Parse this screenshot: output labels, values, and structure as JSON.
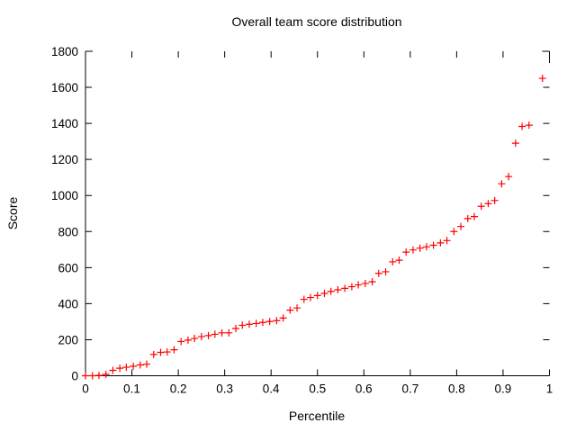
{
  "title": "Overall team score distribution",
  "chart_data": {
    "type": "scatter",
    "title": "Overall team score distribution",
    "xlabel": "Percentile",
    "ylabel": "Score",
    "xlim": [
      0,
      1
    ],
    "ylim": [
      0,
      1800
    ],
    "x_tick_step": 0.1,
    "y_tick_step": 200,
    "grid": false,
    "legend_position": "none",
    "marker": {
      "shape": "plus",
      "color": "#ff0000",
      "size": 8
    },
    "axis_color": "#000000",
    "background_color": "#ffffff",
    "points": [
      [
        0.0,
        0
      ],
      [
        0.015,
        0
      ],
      [
        0.029,
        2
      ],
      [
        0.044,
        8
      ],
      [
        0.059,
        30
      ],
      [
        0.074,
        42
      ],
      [
        0.088,
        47
      ],
      [
        0.103,
        53
      ],
      [
        0.118,
        60
      ],
      [
        0.132,
        64
      ],
      [
        0.147,
        118
      ],
      [
        0.162,
        130
      ],
      [
        0.176,
        132
      ],
      [
        0.191,
        144
      ],
      [
        0.206,
        190
      ],
      [
        0.221,
        198
      ],
      [
        0.235,
        207
      ],
      [
        0.25,
        217
      ],
      [
        0.265,
        223
      ],
      [
        0.279,
        230
      ],
      [
        0.294,
        238
      ],
      [
        0.309,
        238
      ],
      [
        0.324,
        262
      ],
      [
        0.338,
        280
      ],
      [
        0.353,
        286
      ],
      [
        0.368,
        290
      ],
      [
        0.382,
        296
      ],
      [
        0.397,
        301
      ],
      [
        0.412,
        306
      ],
      [
        0.426,
        320
      ],
      [
        0.441,
        364
      ],
      [
        0.456,
        376
      ],
      [
        0.471,
        424
      ],
      [
        0.485,
        434
      ],
      [
        0.5,
        445
      ],
      [
        0.515,
        457
      ],
      [
        0.529,
        468
      ],
      [
        0.544,
        477
      ],
      [
        0.559,
        485
      ],
      [
        0.574,
        494
      ],
      [
        0.588,
        504
      ],
      [
        0.603,
        512
      ],
      [
        0.618,
        521
      ],
      [
        0.632,
        568
      ],
      [
        0.647,
        577
      ],
      [
        0.662,
        632
      ],
      [
        0.676,
        641
      ],
      [
        0.691,
        686
      ],
      [
        0.706,
        698
      ],
      [
        0.721,
        708
      ],
      [
        0.735,
        715
      ],
      [
        0.75,
        724
      ],
      [
        0.765,
        737
      ],
      [
        0.779,
        750
      ],
      [
        0.794,
        800
      ],
      [
        0.809,
        828
      ],
      [
        0.824,
        872
      ],
      [
        0.838,
        883
      ],
      [
        0.853,
        940
      ],
      [
        0.868,
        955
      ],
      [
        0.882,
        972
      ],
      [
        0.897,
        1065
      ],
      [
        0.912,
        1105
      ],
      [
        0.927,
        1290
      ],
      [
        0.941,
        1383
      ],
      [
        0.956,
        1390
      ],
      [
        0.985,
        1650
      ]
    ]
  }
}
